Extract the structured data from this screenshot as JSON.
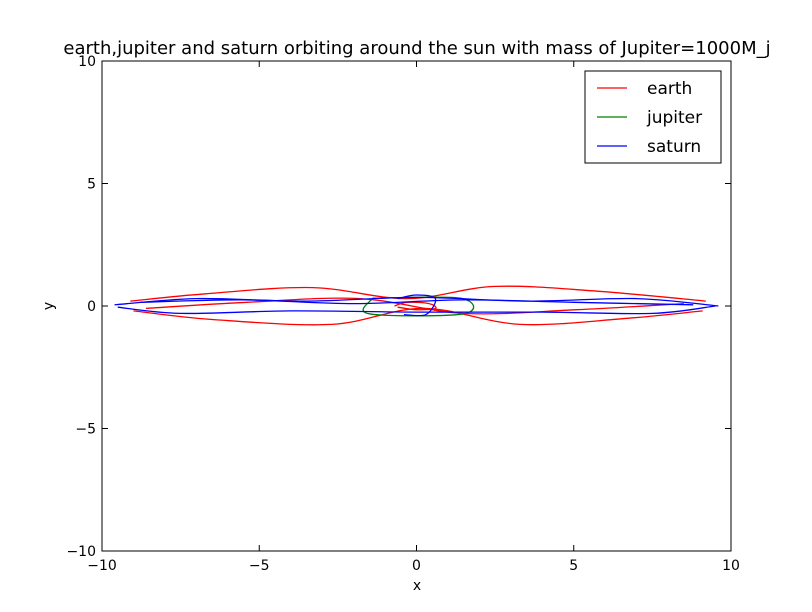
{
  "chart_data": {
    "type": "line",
    "title": "earth,jupiter and saturn orbiting around the sun with mass of Jupiter=1000M_j",
    "xlabel": "x",
    "ylabel": "y",
    "xlim": [
      -10,
      10
    ],
    "ylim": [
      -10,
      10
    ],
    "xticks": [
      -10,
      -5,
      0,
      5,
      10
    ],
    "yticks": [
      -10,
      -5,
      0,
      5,
      10
    ],
    "xtick_labels": [
      "−10",
      "−5",
      "0",
      "5",
      "10"
    ],
    "ytick_labels": [
      "−10",
      "−5",
      "0",
      "5",
      "10"
    ],
    "grid": false,
    "legend_position": "top-right",
    "series": [
      {
        "name": "earth",
        "color": "#ff0000",
        "loops": [
          [
            [
              -9.1,
              0.2
            ],
            [
              -6.7,
              0.5
            ],
            [
              -3.3,
              0.75
            ],
            [
              -0.3,
              0.3
            ],
            [
              2.5,
              0.8
            ],
            [
              5.8,
              0.6
            ],
            [
              9.2,
              0.2
            ]
          ],
          [
            [
              -9.0,
              -0.2
            ],
            [
              -6.5,
              -0.55
            ],
            [
              -2.7,
              -0.75
            ],
            [
              0.2,
              -0.1
            ],
            [
              3.3,
              -0.75
            ],
            [
              6.7,
              -0.5
            ],
            [
              9.1,
              -0.2
            ]
          ],
          [
            [
              -8.6,
              -0.1
            ],
            [
              -5.4,
              0.15
            ],
            [
              -1.8,
              0.3
            ],
            [
              1.5,
              -0.3
            ],
            [
              5.1,
              -0.15
            ],
            [
              8.5,
              0.1
            ]
          ],
          [
            [
              -0.7,
              0.0
            ],
            [
              -0.3,
              0.15
            ],
            [
              0.4,
              0.1
            ],
            [
              0.6,
              -0.1
            ],
            [
              0.0,
              -0.15
            ],
            [
              -0.6,
              -0.05
            ]
          ]
        ]
      },
      {
        "name": "jupiter",
        "color": "#008000",
        "loops": [
          [
            [
              -1.4,
              0.32
            ],
            [
              1.4,
              0.32
            ],
            [
              1.5,
              -0.32
            ],
            [
              -1.5,
              -0.32
            ],
            [
              -1.4,
              0.32
            ]
          ]
        ]
      },
      {
        "name": "saturn",
        "color": "#0000ff",
        "loops": [
          [
            [
              -9.6,
              0.05
            ],
            [
              -7.0,
              0.3
            ],
            [
              -3.5,
              0.2
            ],
            [
              0.0,
              0.35
            ],
            [
              3.5,
              0.2
            ],
            [
              7.0,
              0.3
            ],
            [
              9.6,
              0.0
            ]
          ],
          [
            [
              -9.5,
              -0.05
            ],
            [
              -7.5,
              -0.3
            ],
            [
              -4.0,
              -0.2
            ],
            [
              0.0,
              -0.25
            ],
            [
              4.0,
              -0.25
            ],
            [
              7.5,
              -0.3
            ],
            [
              9.5,
              0.0
            ]
          ],
          [
            [
              -8.8,
              0.15
            ],
            [
              -5.5,
              0.25
            ],
            [
              -2.0,
              0.1
            ],
            [
              1.5,
              0.25
            ],
            [
              5.0,
              0.15
            ],
            [
              8.8,
              0.05
            ]
          ],
          [
            [
              -0.6,
              0.3
            ],
            [
              0.0,
              0.45
            ],
            [
              0.6,
              0.3
            ],
            [
              0.3,
              -0.35
            ],
            [
              -0.4,
              -0.35
            ]
          ]
        ]
      }
    ]
  }
}
